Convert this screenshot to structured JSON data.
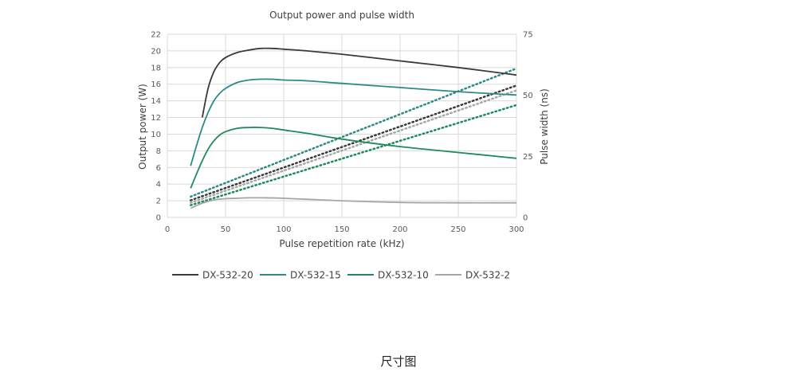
{
  "caption": "尺寸图",
  "chart_data": {
    "type": "line",
    "title": "Output power and pulse width",
    "xlabel": "Pulse repetition rate (kHz)",
    "ylabel": "Output power (W)",
    "y2label": "Pulse width (ns)",
    "xlim": [
      0,
      300
    ],
    "ylim": [
      0,
      22
    ],
    "y2lim": [
      0,
      75
    ],
    "xticks": [
      "0",
      "50",
      "100",
      "150",
      "200",
      "250",
      "300"
    ],
    "yticks": [
      "0",
      "2",
      "4",
      "6",
      "8",
      "10",
      "12",
      "14",
      "16",
      "18",
      "20",
      "22"
    ],
    "y2ticks": [
      "0",
      "25",
      "50",
      "75"
    ],
    "grid": true,
    "legend_position": "bottom",
    "series": [
      {
        "name": "DX-532-20",
        "color": "#3a3a3a",
        "axis": "left",
        "x": [
          30,
          35,
          40,
          45,
          50,
          60,
          70,
          80,
          90,
          100,
          120,
          150,
          200,
          250,
          300
        ],
        "y": [
          12,
          15.5,
          17.5,
          18.6,
          19.2,
          19.8,
          20.1,
          20.3,
          20.3,
          20.2,
          20,
          19.6,
          18.8,
          18,
          17.1
        ]
      },
      {
        "name": "DX-532-15",
        "color": "#2e8a87",
        "axis": "left",
        "x": [
          20,
          25,
          30,
          35,
          40,
          45,
          50,
          60,
          70,
          80,
          90,
          100,
          120,
          150,
          200,
          250,
          300
        ],
        "y": [
          6.2,
          8.6,
          10.8,
          12.6,
          14,
          14.9,
          15.5,
          16.2,
          16.5,
          16.6,
          16.6,
          16.5,
          16.4,
          16.1,
          15.6,
          15.1,
          14.7
        ]
      },
      {
        "name": "DX-532-10",
        "color": "#1f8a5a",
        "axis": "left",
        "x": [
          20,
          25,
          30,
          35,
          40,
          45,
          50,
          60,
          70,
          80,
          90,
          100,
          120,
          150,
          200,
          250,
          300
        ],
        "y": [
          3.5,
          5.2,
          6.8,
          8.2,
          9.2,
          9.9,
          10.3,
          10.7,
          10.8,
          10.8,
          10.7,
          10.5,
          10.1,
          9.4,
          8.5,
          7.8,
          7.1
        ]
      },
      {
        "name": "DX-532-2",
        "color": "#a6a6a6",
        "axis": "left",
        "x": [
          20,
          30,
          40,
          50,
          60,
          70,
          80,
          100,
          150,
          200,
          250,
          300
        ],
        "y": [
          1.1,
          1.7,
          2.1,
          2.25,
          2.3,
          2.35,
          2.35,
          2.3,
          2.0,
          1.8,
          1.75,
          1.75
        ]
      }
    ],
    "trendlines": [
      {
        "color": "#2e8a87",
        "axis": "right",
        "x": [
          20,
          300
        ],
        "y": [
          8.5,
          61
        ]
      },
      {
        "color": "#3a3a3a",
        "axis": "right",
        "x": [
          20,
          300
        ],
        "y": [
          7,
          54
        ]
      },
      {
        "color": "#a6a6a6",
        "axis": "right",
        "x": [
          20,
          300
        ],
        "y": [
          6,
          52
        ]
      },
      {
        "color": "#1f8a5a",
        "axis": "right",
        "x": [
          20,
          300
        ],
        "y": [
          5,
          46
        ]
      }
    ]
  }
}
